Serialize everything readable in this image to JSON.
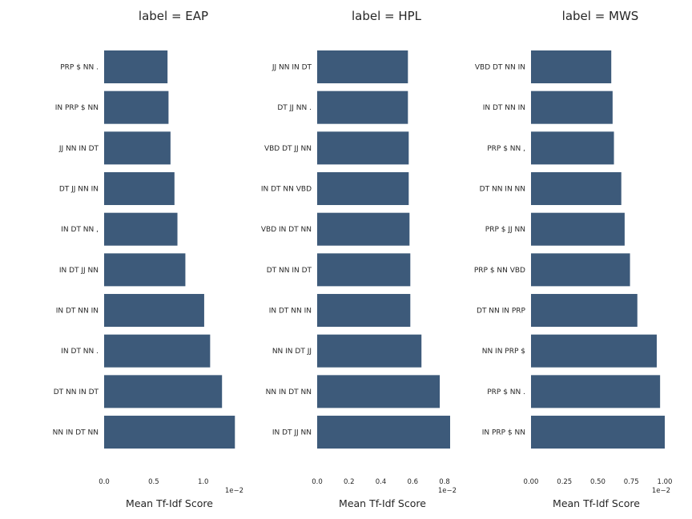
{
  "chart_data": [
    {
      "type": "bar",
      "orientation": "horizontal",
      "title": "label = EAP",
      "xlabel": "Mean Tf-Idf Score",
      "x_offset_text": "1e−2",
      "xlim": [
        0,
        1.35
      ],
      "xticks": [
        0.0,
        0.5,
        1.0
      ],
      "xtick_labels": [
        "0.0",
        "0.5",
        "1.0"
      ],
      "categories": [
        "PRP $ NN .",
        "IN PRP $ NN",
        "JJ NN IN DT",
        "DT JJ NN IN",
        "IN DT NN ,",
        "IN DT JJ NN",
        "IN DT NN IN",
        "IN DT NN .",
        "DT NN IN DT",
        "NN IN DT NN"
      ],
      "values": [
        0.64,
        0.65,
        0.67,
        0.71,
        0.74,
        0.82,
        1.01,
        1.07,
        1.19,
        1.32
      ]
    },
    {
      "type": "bar",
      "orientation": "horizontal",
      "title": "label = HPL",
      "xlabel": "Mean Tf-Idf Score",
      "x_offset_text": "1e−2",
      "xlim": [
        0,
        0.84
      ],
      "xticks": [
        0.0,
        0.2,
        0.4,
        0.6,
        0.8
      ],
      "xtick_labels": [
        "0.0",
        "0.2",
        "0.4",
        "0.6",
        "0.8"
      ],
      "categories": [
        "JJ NN IN DT",
        "DT JJ NN .",
        "VBD DT JJ NN",
        "IN DT NN VBD",
        "VBD IN DT NN",
        "DT NN IN DT",
        "IN DT NN IN",
        "NN IN DT JJ",
        "NN IN DT NN",
        "IN DT JJ NN"
      ],
      "values": [
        0.57,
        0.57,
        0.575,
        0.575,
        0.58,
        0.585,
        0.585,
        0.655,
        0.77,
        0.835
      ]
    },
    {
      "type": "bar",
      "orientation": "horizontal",
      "title": "label = MWS",
      "xlabel": "Mean Tf-Idf Score",
      "x_offset_text": "1e−2",
      "xlim": [
        0,
        1.0
      ],
      "xticks": [
        0.0,
        0.25,
        0.5,
        0.75,
        1.0
      ],
      "xtick_labels": [
        "0.00",
        "0.25",
        "0.50",
        "0.75",
        "1.00"
      ],
      "categories": [
        "VBD DT NN IN",
        "IN DT NN IN",
        "PRP $ NN ,",
        "DT NN IN NN",
        "PRP $ JJ NN",
        "PRP $ NN VBD",
        "DT NN IN PRP",
        "NN IN PRP $",
        "PRP $ NN .",
        "IN PRP $ NN"
      ],
      "values": [
        0.6,
        0.61,
        0.62,
        0.675,
        0.7,
        0.74,
        0.795,
        0.94,
        0.965,
        1.0
      ]
    }
  ],
  "colors": {
    "bar": "#3d5a7a",
    "text": "#262626",
    "background": "#ffffff"
  }
}
